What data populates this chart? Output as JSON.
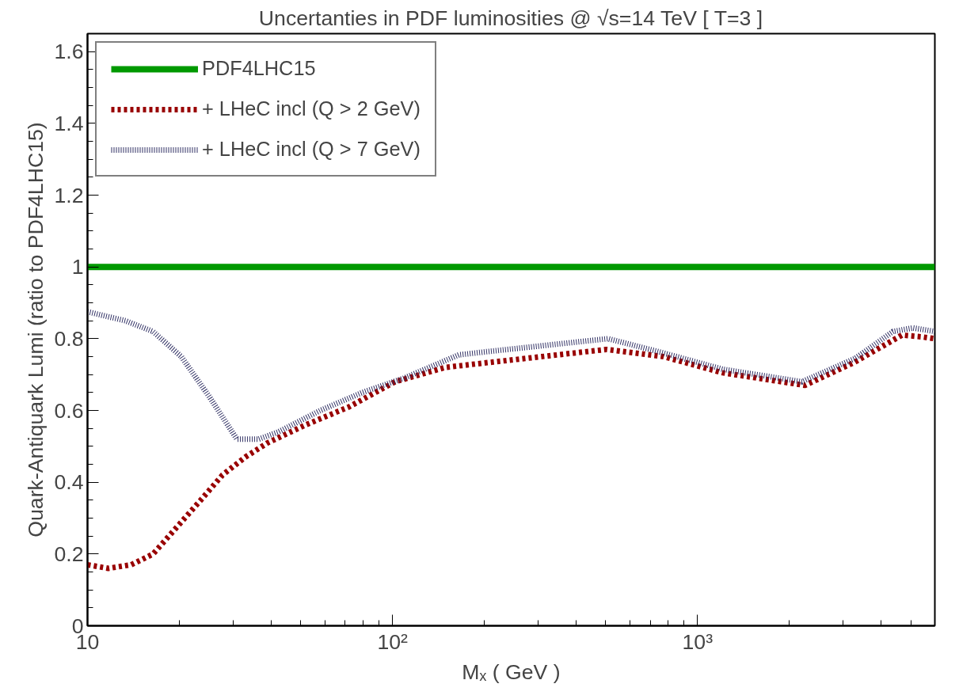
{
  "chart_data": {
    "type": "line",
    "title": "Uncertanties in PDF luminosities @ √s=14 TeV [ T=3 ]",
    "xlabel": "Mₓ ( GeV )",
    "ylabel": "Quark-Antiquark Lumi (ratio to PDF4LHC15)",
    "log": "x",
    "xlim": [
      10,
      6000
    ],
    "xticks": [
      10,
      {
        "value": 100,
        "label": "10²"
      },
      {
        "value": 1000,
        "label": "10³"
      }
    ],
    "ylim": [
      0,
      1.65
    ],
    "yticks": [
      0,
      0.2,
      0.4,
      0.6,
      0.8,
      1,
      1.2,
      1.4,
      1.6
    ],
    "grid": false,
    "legend": "top left",
    "series": [
      {
        "name": "PDF4LHC15",
        "color": "#009900",
        "line_style": "solid",
        "x": [
          10,
          6000
        ],
        "values": [
          1,
          1
        ]
      },
      {
        "name": "+ LHeC incl (Q > 2 GeV)",
        "color": "#990000",
        "line_style": "dashed",
        "x": [
          10,
          11.7,
          13.9,
          16.4,
          19.4,
          23.5,
          27.7,
          32.9,
          39,
          52,
          72,
          102,
          149,
          214,
          502,
          774,
          1208,
          2250,
          3285,
          4680,
          5450,
          6000
        ],
        "values": [
          0.17,
          0.16,
          0.17,
          0.2,
          0.27,
          0.35,
          0.42,
          0.47,
          0.51,
          0.56,
          0.61,
          0.68,
          0.72,
          0.735,
          0.77,
          0.75,
          0.705,
          0.67,
          0.735,
          0.81,
          0.805,
          0.8
        ]
      },
      {
        "name": "+ LHeC incl (Q > 7 GeV)",
        "color": "#333366",
        "line_style": "dotted",
        "x": [
          10,
          13.3,
          16.4,
          20.3,
          25,
          30.9,
          36.4,
          42.2,
          58,
          79.6,
          109,
          165,
          210,
          508,
          774,
          1208,
          2200,
          3285,
          4375,
          5090,
          6000
        ],
        "values": [
          0.875,
          0.85,
          0.82,
          0.75,
          0.64,
          0.52,
          0.52,
          0.54,
          0.6,
          0.65,
          0.69,
          0.755,
          0.765,
          0.8,
          0.76,
          0.715,
          0.68,
          0.745,
          0.82,
          0.83,
          0.82
        ]
      }
    ]
  }
}
